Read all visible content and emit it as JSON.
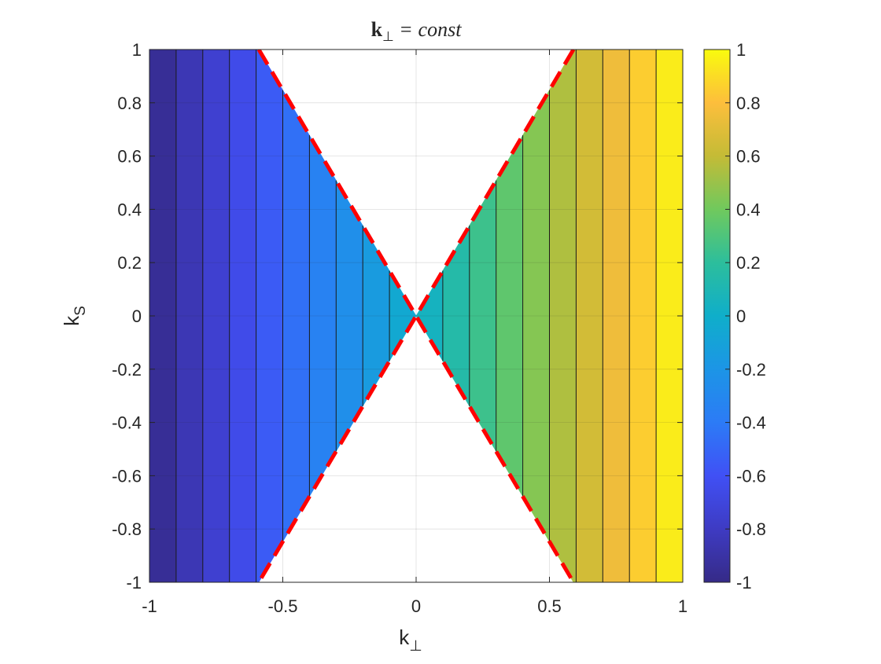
{
  "chart_data": {
    "type": "heatmap",
    "subtype": "filled-contour",
    "title": {
      "symbol": "k",
      "subscript": "⊥",
      "equals": "=",
      "rhs": "const"
    },
    "xlabel": {
      "base": "k",
      "sub": "⊥"
    },
    "ylabel": {
      "base": "k",
      "sub": "S"
    },
    "xlim": [
      -1,
      1
    ],
    "ylim": [
      -1,
      1
    ],
    "xticks": [
      "-1",
      "-0.5",
      "0",
      "0.5",
      "1"
    ],
    "xtick_values": [
      -1,
      -0.5,
      0,
      0.5,
      1
    ],
    "yticks": [
      "1",
      "0.8",
      "0.6",
      "0.4",
      "0.2",
      "0",
      "-0.2",
      "-0.4",
      "-0.6",
      "-0.8",
      "-1"
    ],
    "ytick_values": [
      1,
      0.8,
      0.6,
      0.4,
      0.2,
      0,
      -0.2,
      -0.4,
      -0.6,
      -0.8,
      -1
    ],
    "grid": true,
    "colorbar": {
      "clim": [
        -1,
        1
      ],
      "ticks": [
        "1",
        "0.8",
        "0.6",
        "0.4",
        "0.2",
        "0",
        "-0.2",
        "-0.4",
        "-0.6",
        "-0.8",
        "-1"
      ],
      "tick_values": [
        1,
        0.8,
        0.6,
        0.4,
        0.2,
        0,
        -0.2,
        -0.4,
        -0.6,
        -0.8,
        -1
      ],
      "colormap": "parula"
    },
    "field": "value = k_perp, shown only where |k_S| <= |k_perp| / 0.59",
    "contour_levels": [
      -0.9,
      -0.8,
      -0.7,
      -0.6,
      -0.5,
      -0.4,
      -0.3,
      -0.2,
      -0.1,
      0,
      0.1,
      0.2,
      0.3,
      0.4,
      0.5,
      0.6,
      0.7,
      0.8,
      0.9
    ],
    "boundary_lines": {
      "color": "#ff0000",
      "style": "dashed",
      "slope_k_perp_per_k_S": 0.59,
      "lines": [
        {
          "x": [
            -0.59,
            0.59
          ],
          "y": [
            1,
            -1
          ]
        },
        {
          "x": [
            0.59,
            -0.59
          ],
          "y": [
            1,
            -1
          ]
        }
      ]
    }
  }
}
